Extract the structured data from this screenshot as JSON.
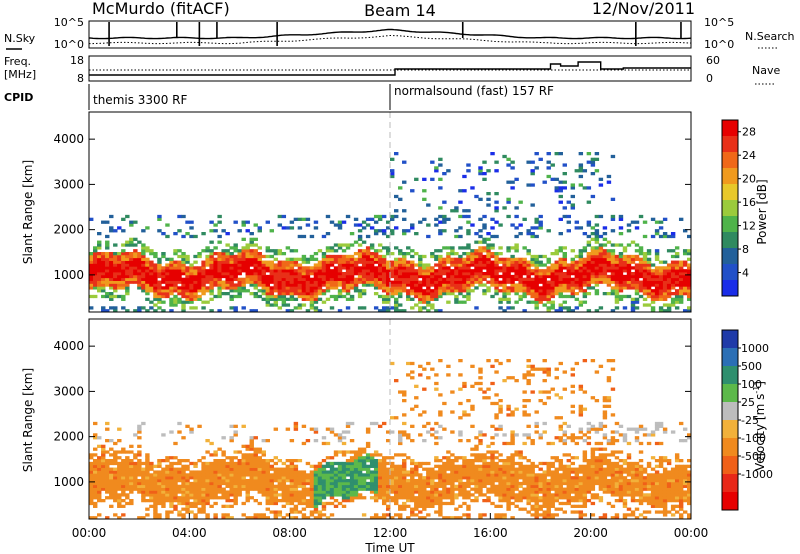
{
  "header": {
    "station": "McMurdo (fitACF)",
    "beam": "Beam 14",
    "date": "12/Nov/2011"
  },
  "summary": {
    "left_labels": {
      "nsky": "N.Sky",
      "freq": "Freq.",
      "freq_unit": "[MHz]",
      "cpid": "CPID"
    },
    "right_labels": {
      "nsearch": "N.Search",
      "nave": "Nave"
    },
    "noise_axis": {
      "top": "10^5",
      "bottom": "10^0"
    },
    "freq_axis": {
      "top": "18",
      "bottom": "8"
    },
    "nave_axis": {
      "top": "60",
      "bottom": "0"
    },
    "cpid_segments": [
      {
        "start_hour": 0.0,
        "end_hour": 12.0,
        "label": "themis 3300 RF"
      },
      {
        "start_hour": 12.0,
        "end_hour": 24.0,
        "label": "normalsound (fast) 157 RF"
      }
    ]
  },
  "chart_data": [
    {
      "type": "heatmap",
      "panel": "power",
      "ylabel": "Slant Range [km]",
      "xlim": [
        0,
        24
      ],
      "ylim": [
        180,
        4600
      ],
      "yticks": [
        1000,
        2000,
        3000,
        4000
      ],
      "colorbar": {
        "label": "Power [dB]",
        "ticks": [
          4,
          8,
          12,
          16,
          20,
          24,
          28
        ],
        "range": [
          0,
          30
        ],
        "colors": [
          "#1a2de8",
          "#2150c8",
          "#22609a",
          "#2f8a60",
          "#4fb34a",
          "#9bcb3c",
          "#e8c82a",
          "#f09a1e",
          "#f06818",
          "#e83018",
          "#e60000"
        ]
      }
    },
    {
      "type": "heatmap",
      "panel": "velocity",
      "ylabel": "Slant Range [km]",
      "xlabel": "Time UT",
      "xlim": [
        0,
        24
      ],
      "ylim": [
        180,
        4600
      ],
      "yticks": [
        1000,
        2000,
        3000,
        4000
      ],
      "xticks": [
        "00:00",
        "04:00",
        "08:00",
        "12:00",
        "16:00",
        "20:00",
        "00:00"
      ],
      "colorbar": {
        "label": "Velocity [m s^-1]",
        "ticks": [
          1000,
          500,
          100,
          25,
          -25,
          -100,
          -500,
          -1000
        ],
        "colors": [
          "#1f3aa8",
          "#2b6fb5",
          "#2f8f6e",
          "#5cb94a",
          "#bdbdbd",
          "#f2b13a",
          "#f08a1e",
          "#f06018",
          "#e82818",
          "#e60000"
        ]
      }
    }
  ]
}
